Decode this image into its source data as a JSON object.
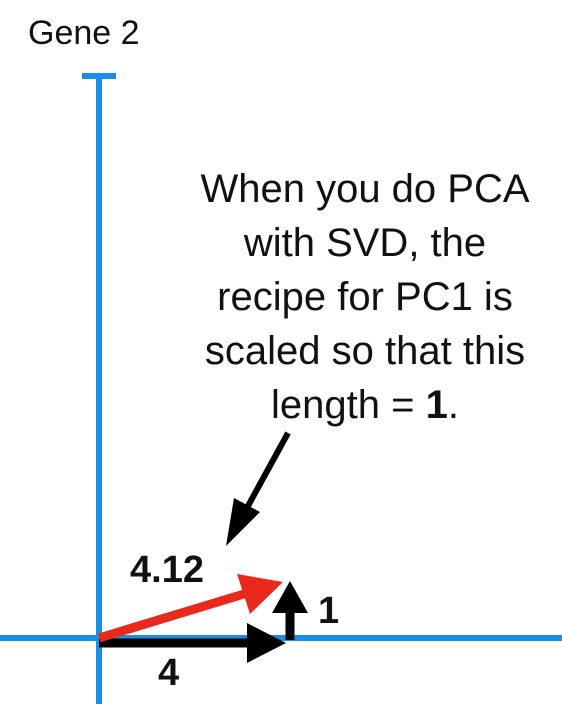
{
  "diagram": {
    "axis_title": "Gene 2",
    "annotation_lines": [
      "When you do PCA",
      "with SVD, the",
      "recipe for PC1 is",
      "scaled so that this"
    ],
    "annotation_last_line_prefix": "length = ",
    "annotation_last_line_bold": "1",
    "annotation_last_line_suffix": ".",
    "vector_labels": {
      "hypotenuse": "4.12",
      "vertical": "1",
      "horizontal": "4"
    },
    "colors": {
      "axis": "#1a8fe8",
      "arrow": "#000000",
      "pc1_vector": "#e8291c",
      "text": "#111111"
    }
  }
}
